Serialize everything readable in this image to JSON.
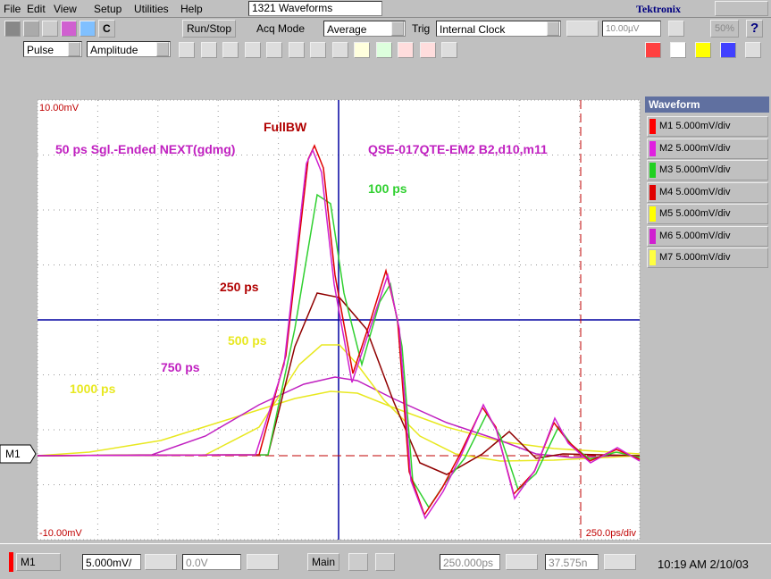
{
  "menu": {
    "items": [
      "File",
      "Edit",
      "View",
      "Setup",
      "Utilities",
      "Help"
    ],
    "record": "1321 Waveforms",
    "brand": "Tektronix"
  },
  "toolbar": {
    "c_button": "C",
    "run_stop": "Run/Stop",
    "acq_mode_label": "Acq Mode",
    "acq_mode": "Average",
    "trig_label": "Trig",
    "trig_source": "Internal Clock",
    "trig_level": "10.00µV",
    "percent": "50%",
    "help": "?"
  },
  "toolbar2": {
    "measure_type": "Pulse",
    "measurement": "Amplitude"
  },
  "display": {
    "top_scale": "10.00mV",
    "bottom_scale": "-10.00mV",
    "timebase": "250.0ps/div",
    "marker": "M1",
    "annotations": [
      {
        "text": "FullBW",
        "color": "#b00000"
      },
      {
        "text": "50 ps Sgl.-Ended NEXT(gdmg)",
        "color": "#c020c0"
      },
      {
        "text": "QSE-017QTE-EM2  B2,d10,m11",
        "color": "#c020c0"
      },
      {
        "text": "100 ps",
        "color": "#30d030"
      },
      {
        "text": "250 ps",
        "color": "#b00000"
      },
      {
        "text": "500 ps",
        "color": "#e8e820"
      },
      {
        "text": "750 ps",
        "color": "#c020c0"
      },
      {
        "text": "1000 ps",
        "color": "#e8e820"
      }
    ]
  },
  "waveform_panel": {
    "title": "Waveform",
    "items": [
      {
        "label": "M1 5.000mV/div",
        "color": "#ff0000"
      },
      {
        "label": "M2 5.000mV/div",
        "color": "#e020e0"
      },
      {
        "label": "M3 5.000mV/div",
        "color": "#20d020"
      },
      {
        "label": "M4 5.000mV/div",
        "color": "#e00000"
      },
      {
        "label": "M5 5.000mV/div",
        "color": "#ffff00"
      },
      {
        "label": "M6 5.000mV/div",
        "color": "#d020d0"
      },
      {
        "label": "M7 5.000mV/div",
        "color": "#ffff40"
      }
    ]
  },
  "status": {
    "channel": "M1",
    "scale": "5.000mV/",
    "offset": "0.0V",
    "view": "Main",
    "position": "250.000ps",
    "record_length": "37.575n",
    "clock": "10:19 AM 2/10/03"
  }
}
